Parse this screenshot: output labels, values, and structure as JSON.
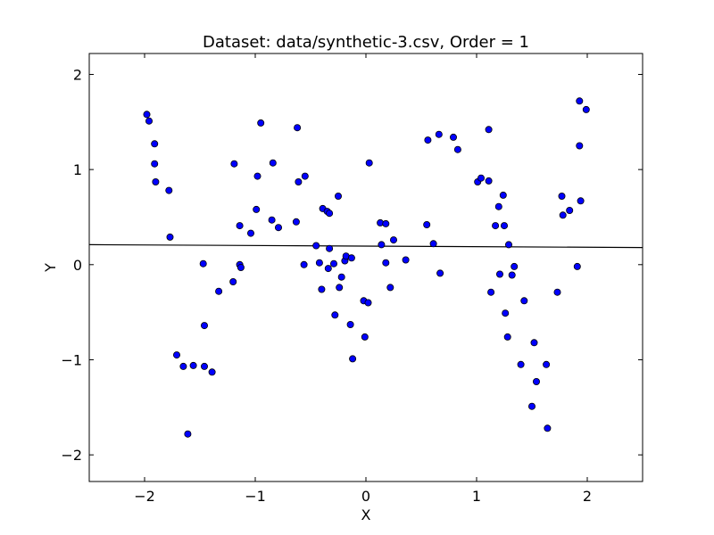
{
  "chart_data": {
    "type": "scatter",
    "title": "Dataset: data/synthetic-3.csv, Order = 1",
    "xlabel": "X",
    "ylabel": "Y",
    "xlim": [
      -2.5,
      2.5
    ],
    "ylim": [
      -2.28,
      2.22
    ],
    "xticks": [
      -2,
      -1,
      0,
      1,
      2
    ],
    "yticks": [
      -2,
      -1,
      0,
      1,
      2
    ],
    "xtick_labels": [
      "−2",
      "−1",
      "0",
      "1",
      "2"
    ],
    "ytick_labels": [
      "−2",
      "−1",
      "0",
      "1",
      "2"
    ],
    "grid": false,
    "marker_color": "#0000ff",
    "line_color": "#000000",
    "fit_line": {
      "x": [
        -2.5,
        2.5
      ],
      "y": [
        0.21,
        0.18
      ]
    },
    "points": [
      [
        -1.98,
        1.58
      ],
      [
        -1.96,
        1.51
      ],
      [
        -1.91,
        1.27
      ],
      [
        -1.91,
        1.06
      ],
      [
        -1.9,
        0.87
      ],
      [
        -1.78,
        0.78
      ],
      [
        -1.77,
        0.29
      ],
      [
        -1.71,
        -0.95
      ],
      [
        -1.65,
        -1.07
      ],
      [
        -1.61,
        -1.78
      ],
      [
        -1.56,
        -1.06
      ],
      [
        -1.47,
        0.01
      ],
      [
        -1.46,
        -1.07
      ],
      [
        -1.46,
        -0.64
      ],
      [
        -1.39,
        -1.13
      ],
      [
        -1.33,
        -0.28
      ],
      [
        -1.2,
        -0.18
      ],
      [
        -1.19,
        1.06
      ],
      [
        -1.14,
        0.41
      ],
      [
        -1.14,
        0.0
      ],
      [
        -1.13,
        -0.03
      ],
      [
        -1.04,
        0.33
      ],
      [
        -0.99,
        0.58
      ],
      [
        -0.98,
        0.93
      ],
      [
        -0.95,
        1.49
      ],
      [
        -0.85,
        0.47
      ],
      [
        -0.84,
        1.07
      ],
      [
        -0.79,
        0.39
      ],
      [
        -0.63,
        0.45
      ],
      [
        -0.62,
        1.44
      ],
      [
        -0.61,
        0.87
      ],
      [
        -0.56,
        0.0
      ],
      [
        -0.55,
        0.93
      ],
      [
        -0.45,
        0.2
      ],
      [
        -0.42,
        0.02
      ],
      [
        -0.4,
        -0.26
      ],
      [
        -0.39,
        0.59
      ],
      [
        -0.35,
        0.56
      ],
      [
        -0.34,
        -0.04
      ],
      [
        -0.33,
        0.54
      ],
      [
        -0.33,
        0.17
      ],
      [
        -0.29,
        0.01
      ],
      [
        -0.28,
        -0.53
      ],
      [
        -0.25,
        0.72
      ],
      [
        -0.24,
        -0.24
      ],
      [
        -0.22,
        -0.13
      ],
      [
        -0.19,
        0.04
      ],
      [
        -0.18,
        0.09
      ],
      [
        -0.14,
        -0.63
      ],
      [
        -0.13,
        0.07
      ],
      [
        -0.12,
        -0.99
      ],
      [
        -0.02,
        -0.38
      ],
      [
        -0.01,
        -0.76
      ],
      [
        0.02,
        -0.4
      ],
      [
        0.03,
        1.07
      ],
      [
        0.13,
        0.44
      ],
      [
        0.14,
        0.21
      ],
      [
        0.18,
        0.43
      ],
      [
        0.18,
        0.02
      ],
      [
        0.22,
        -0.24
      ],
      [
        0.25,
        0.26
      ],
      [
        0.36,
        0.05
      ],
      [
        0.55,
        0.42
      ],
      [
        0.56,
        1.31
      ],
      [
        0.61,
        0.22
      ],
      [
        0.66,
        1.37
      ],
      [
        0.67,
        -0.09
      ],
      [
        0.79,
        1.34
      ],
      [
        0.83,
        1.21
      ],
      [
        1.01,
        0.87
      ],
      [
        1.04,
        0.91
      ],
      [
        1.11,
        1.42
      ],
      [
        1.11,
        0.88
      ],
      [
        1.13,
        -0.29
      ],
      [
        1.17,
        0.41
      ],
      [
        1.2,
        0.61
      ],
      [
        1.21,
        -0.1
      ],
      [
        1.24,
        0.73
      ],
      [
        1.25,
        0.41
      ],
      [
        1.26,
        -0.51
      ],
      [
        1.28,
        -0.76
      ],
      [
        1.29,
        0.21
      ],
      [
        1.32,
        -0.11
      ],
      [
        1.34,
        -0.02
      ],
      [
        1.4,
        -1.05
      ],
      [
        1.43,
        -0.38
      ],
      [
        1.5,
        -1.49
      ],
      [
        1.52,
        -0.82
      ],
      [
        1.54,
        -1.23
      ],
      [
        1.63,
        -1.05
      ],
      [
        1.64,
        -1.72
      ],
      [
        1.73,
        -0.29
      ],
      [
        1.77,
        0.72
      ],
      [
        1.78,
        0.52
      ],
      [
        1.84,
        0.57
      ],
      [
        1.91,
        -0.02
      ],
      [
        1.93,
        1.25
      ],
      [
        1.93,
        1.72
      ],
      [
        1.94,
        0.67
      ],
      [
        1.99,
        1.63
      ]
    ]
  }
}
